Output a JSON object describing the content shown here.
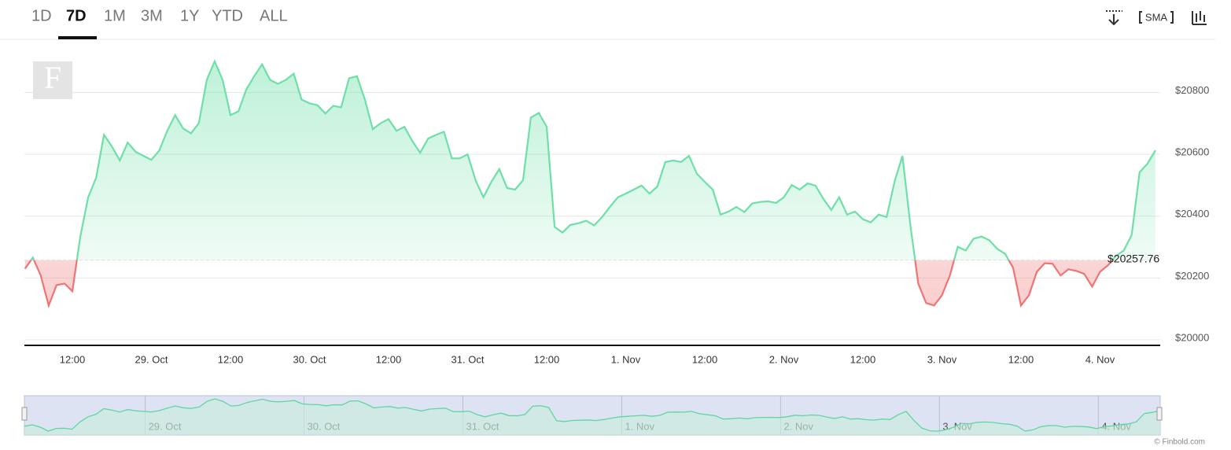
{
  "tabs": [
    "1D",
    "7D",
    "1M",
    "3M",
    "1Y",
    "YTD",
    "ALL"
  ],
  "active_tab": 1,
  "toolbar": {
    "sma": "SMA"
  },
  "logo": "F",
  "credit": "© Finbold.com",
  "chart_data": {
    "type": "line",
    "categories": [
      null,
      null,
      null,
      null,
      null,
      null,
      "12:00",
      null,
      null,
      null,
      null,
      null,
      null,
      null,
      null,
      null,
      "29. Oct",
      null,
      null,
      null,
      null,
      null,
      null,
      null,
      null,
      null,
      "12:00",
      null,
      null,
      null,
      null,
      null,
      null,
      null,
      null,
      null,
      "30. Oct",
      null,
      null,
      null,
      null,
      null,
      null,
      null,
      null,
      null,
      "12:00",
      null,
      null,
      null,
      null,
      null,
      null,
      null,
      null,
      null,
      "31. Oct",
      null,
      null,
      null,
      null,
      null,
      null,
      null,
      null,
      null,
      "12:00",
      null,
      null,
      null,
      null,
      null,
      null,
      null,
      null,
      null,
      "1. Nov",
      null,
      null,
      null,
      null,
      null,
      null,
      null,
      null,
      null,
      "12:00",
      null,
      null,
      null,
      null,
      null,
      null,
      null,
      null,
      null,
      "2. Nov",
      null,
      null,
      null,
      null,
      null,
      null,
      null,
      null,
      null,
      "12:00",
      null,
      null,
      null,
      null,
      null,
      null,
      null,
      null,
      null,
      "3. Nov",
      null,
      null,
      null,
      null,
      null,
      null,
      null,
      null,
      null,
      "12:00",
      null,
      null,
      null,
      null,
      null,
      null,
      null,
      null,
      null,
      "4. Nov",
      null,
      null,
      null,
      null,
      null,
      null,
      null
    ],
    "values": [
      20230,
      20266,
      20208,
      20111,
      20177,
      20182,
      20157,
      20334,
      20461,
      20524,
      20663,
      20625,
      20580,
      20638,
      20608,
      20595,
      20582,
      20613,
      20676,
      20727,
      20684,
      20668,
      20701,
      20841,
      20901,
      20841,
      20727,
      20739,
      20810,
      20853,
      20891,
      20841,
      20828,
      20841,
      20861,
      20777,
      20765,
      20759,
      20732,
      20757,
      20752,
      20846,
      20853,
      20777,
      20681,
      20701,
      20714,
      20676,
      20689,
      20643,
      20605,
      20651,
      20663,
      20673,
      20587,
      20587,
      20600,
      20516,
      20461,
      20511,
      20552,
      20491,
      20486,
      20516,
      20719,
      20734,
      20689,
      20365,
      20347,
      20372,
      20377,
      20385,
      20370,
      20397,
      20430,
      20461,
      20473,
      20486,
      20499,
      20473,
      20496,
      20575,
      20580,
      20575,
      20595,
      20537,
      20511,
      20486,
      20405,
      20415,
      20430,
      20413,
      20441,
      20446,
      20448,
      20443,
      20461,
      20501,
      20486,
      20506,
      20499,
      20456,
      20420,
      20461,
      20405,
      20415,
      20390,
      20380,
      20405,
      20397,
      20511,
      20595,
      20372,
      20182,
      20119,
      20111,
      20144,
      20208,
      20301,
      20289,
      20327,
      20334,
      20322,
      20294,
      20278,
      20233,
      20111,
      20144,
      20220,
      20248,
      20246,
      20208,
      20228,
      20223,
      20213,
      20172,
      20220,
      20241,
      20271,
      20289,
      20339,
      20542,
      20570,
      20613
    ],
    "color": "#6ee0a7",
    "down_color": "#f07474",
    "reference_line": {
      "value": 20257.76,
      "label": "$20257.76"
    },
    "ylim": [
      19982,
      20972
    ],
    "yticks": [
      {
        "value": 20000,
        "label": "$20000"
      },
      {
        "value": 20200,
        "label": "$20200"
      },
      {
        "value": 20400,
        "label": "$20400"
      },
      {
        "value": 20600,
        "label": "$20600"
      },
      {
        "value": 20800,
        "label": "$20800"
      }
    ],
    "grid": true
  }
}
